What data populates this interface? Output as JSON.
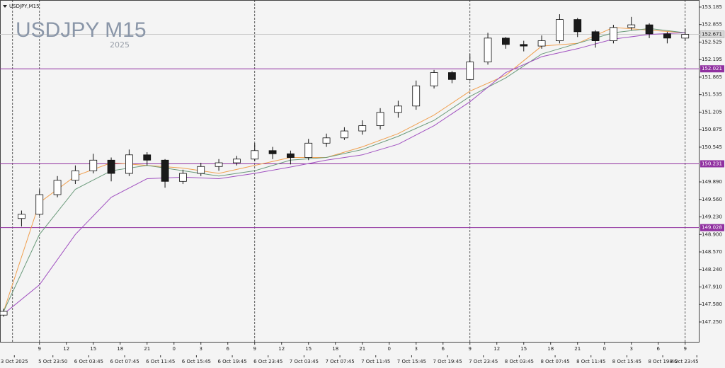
{
  "chart_data": {
    "type": "candlestick",
    "symbol_label": "USDJPY,M15",
    "title": "USDJPY M15",
    "subtitle": "2025",
    "x": [
      0,
      2,
      4,
      6,
      8,
      10,
      12,
      14,
      16,
      18,
      20,
      22,
      24,
      26,
      28,
      30,
      32,
      34,
      36,
      38,
      40,
      42,
      44,
      46,
      48,
      50,
      52,
      54,
      56,
      58,
      60,
      62,
      64,
      66,
      68,
      70,
      72,
      74,
      76
    ],
    "open": [
      147.38,
      149.2,
      149.28,
      149.65,
      149.92,
      150.1,
      150.3,
      150.05,
      150.4,
      150.3,
      149.9,
      150.05,
      150.18,
      150.25,
      150.32,
      150.48,
      150.42,
      150.35,
      150.62,
      150.72,
      150.85,
      150.95,
      151.2,
      151.32,
      151.7,
      151.95,
      151.82,
      152.15,
      152.6,
      152.48,
      152.45,
      152.55,
      152.95,
      152.72,
      152.55,
      152.8,
      152.85,
      152.68,
      152.6
    ],
    "high": [
      147.5,
      149.35,
      149.75,
      150.0,
      150.2,
      150.42,
      150.35,
      150.5,
      150.45,
      150.32,
      150.12,
      150.25,
      150.32,
      150.38,
      150.62,
      150.55,
      150.48,
      150.7,
      150.8,
      150.92,
      151.05,
      151.28,
      151.42,
      151.8,
      152.0,
      151.98,
      152.3,
      152.7,
      152.62,
      152.55,
      152.65,
      153.05,
      152.98,
      152.75,
      152.85,
      153.0,
      152.88,
      152.72,
      152.78
    ],
    "low": [
      147.35,
      149.05,
      149.25,
      149.6,
      149.85,
      150.05,
      149.9,
      150.0,
      150.2,
      149.78,
      149.85,
      150.0,
      150.1,
      150.2,
      150.28,
      150.32,
      150.22,
      150.3,
      150.55,
      150.68,
      150.78,
      150.88,
      151.1,
      151.25,
      151.65,
      151.75,
      151.8,
      152.1,
      152.4,
      152.35,
      152.4,
      152.5,
      152.62,
      152.42,
      152.5,
      152.75,
      152.6,
      152.5,
      152.55
    ],
    "close": [
      147.45,
      149.28,
      149.65,
      149.92,
      150.1,
      150.3,
      150.05,
      150.4,
      150.3,
      149.9,
      150.05,
      150.18,
      150.25,
      150.32,
      150.48,
      150.42,
      150.35,
      150.62,
      150.72,
      150.85,
      150.95,
      151.2,
      151.32,
      151.7,
      151.95,
      151.82,
      152.15,
      152.6,
      152.48,
      152.45,
      152.55,
      152.95,
      152.72,
      152.55,
      152.8,
      152.85,
      152.68,
      152.6,
      152.67
    ],
    "series": [
      {
        "color": "#f0a050",
        "x": [
          0,
          4,
          8,
          12,
          16,
          20,
          24,
          28,
          32,
          36,
          40,
          44,
          48,
          52,
          56,
          60,
          64,
          68,
          72,
          76
        ],
        "values": [
          147.45,
          149.5,
          150.0,
          150.25,
          150.2,
          150.15,
          150.05,
          150.2,
          150.35,
          150.35,
          150.55,
          150.8,
          151.15,
          151.6,
          151.9,
          152.45,
          152.5,
          152.8,
          152.75,
          152.7
        ]
      },
      {
        "color": "#6a9a7a",
        "x": [
          0,
          4,
          8,
          12,
          16,
          20,
          24,
          28,
          32,
          36,
          40,
          44,
          48,
          52,
          56,
          60,
          64,
          68,
          72,
          76
        ],
        "values": [
          147.45,
          148.9,
          149.75,
          150.1,
          150.2,
          150.1,
          150.0,
          150.1,
          150.3,
          150.35,
          150.5,
          150.75,
          151.05,
          151.5,
          151.85,
          152.3,
          152.5,
          152.7,
          152.78,
          152.7
        ]
      },
      {
        "color": "#a050c0",
        "x": [
          0,
          4,
          8,
          12,
          16,
          20,
          24,
          28,
          32,
          36,
          40,
          44,
          48,
          52,
          56,
          60,
          64,
          68,
          72,
          76
        ],
        "values": [
          147.4,
          147.95,
          148.9,
          149.6,
          149.95,
          149.98,
          149.95,
          150.05,
          150.17,
          150.3,
          150.4,
          150.6,
          150.95,
          151.4,
          151.95,
          152.25,
          152.4,
          152.58,
          152.67,
          152.7
        ]
      }
    ],
    "hlines": [
      {
        "value": 152.021,
        "color": "#9030a0"
      },
      {
        "value": 150.231,
        "color": "#9030a0"
      },
      {
        "value": 149.028,
        "color": "#9030a0"
      }
    ],
    "current_price": 152.671,
    "period_separators": [
      1,
      4,
      28,
      52,
      76
    ],
    "xlim": [
      -0.4,
      77.6
    ],
    "ylim": [
      146.863,
      153.318
    ],
    "yticks": [
      153.185,
      152.855,
      152.525,
      152.195,
      151.865,
      151.535,
      151.205,
      150.875,
      150.545,
      {
        "value": 149.89,
        "label": "149.890"
      },
      {
        "value": 149.56,
        "label": "149.560"
      },
      {
        "value": 149.23,
        "label": "149.230"
      },
      {
        "value": 148.9,
        "label": "148.900"
      },
      {
        "value": 148.57,
        "label": "148.570"
      },
      {
        "value": 148.24,
        "label": "148.240"
      },
      {
        "value": 147.91,
        "label": "147.910"
      },
      {
        "value": 147.58,
        "label": "147.580"
      },
      {
        "value": 147.25,
        "label": "147.250"
      }
    ],
    "xticks": [
      {
        "value": 4,
        "label": "9"
      },
      {
        "value": 7,
        "label": "12"
      },
      {
        "value": 10,
        "label": "15"
      },
      {
        "value": 13,
        "label": "18"
      },
      {
        "value": 16,
        "label": "21"
      },
      {
        "value": 19,
        "label": "0"
      },
      {
        "value": 22,
        "label": "3"
      },
      {
        "value": 25,
        "label": "6"
      },
      {
        "value": 28,
        "label": "9"
      },
      {
        "value": 31,
        "label": "12"
      },
      {
        "value": 34,
        "label": "15"
      },
      {
        "value": 37,
        "label": "18"
      },
      {
        "value": 40,
        "label": "21"
      },
      {
        "value": 43,
        "label": "0"
      },
      {
        "value": 46,
        "label": "3"
      },
      {
        "value": 49,
        "label": "6"
      },
      {
        "value": 52,
        "label": "9"
      },
      {
        "value": 55,
        "label": "12"
      },
      {
        "value": 58,
        "label": "15"
      },
      {
        "value": 61,
        "label": "18"
      },
      {
        "value": 64,
        "label": "21"
      },
      {
        "value": 67,
        "label": "0"
      },
      {
        "value": 70,
        "label": "3"
      },
      {
        "value": 73,
        "label": "6"
      },
      {
        "value": 76,
        "label": "9"
      }
    ],
    "date_ticks": [
      {
        "value": 1.2,
        "label": "3 Oct 2025"
      },
      {
        "value": 5.5,
        "label": "5 Oct 23:50"
      },
      {
        "value": 9.5,
        "label": "6 Oct 03:45"
      },
      {
        "value": 13.5,
        "label": "6 Oct 07:45"
      },
      {
        "value": 17.5,
        "label": "6 Oct 11:45"
      },
      {
        "value": 21.5,
        "label": "6 Oct 15:45"
      },
      {
        "value": 25.5,
        "label": "6 Oct 19:45"
      },
      {
        "value": 29.5,
        "label": "6 Oct 23:45"
      },
      {
        "value": 33.5,
        "label": "7 Oct 03:45"
      },
      {
        "value": 37.5,
        "label": "7 Oct 07:45"
      },
      {
        "value": 41.5,
        "label": "7 Oct 11:45"
      },
      {
        "value": 45.5,
        "label": "7 Oct 15:45"
      },
      {
        "value": 49.5,
        "label": "7 Oct 19:45"
      },
      {
        "value": 53.5,
        "label": "7 Oct 23:45"
      },
      {
        "value": 57.5,
        "label": "8 Oct 03:45"
      },
      {
        "value": 61.5,
        "label": "8 Oct 07:45"
      },
      {
        "value": 65.5,
        "label": "8 Oct 11:45"
      },
      {
        "value": 69.5,
        "label": "8 Oct 15:45"
      },
      {
        "value": 73.5,
        "label": "8 Oct 19:45"
      },
      {
        "value": 77.3,
        "label": "8 Oct 23:45"
      }
    ],
    "bull_color": "#ffffff",
    "bear_color": "#1a1a1a"
  }
}
